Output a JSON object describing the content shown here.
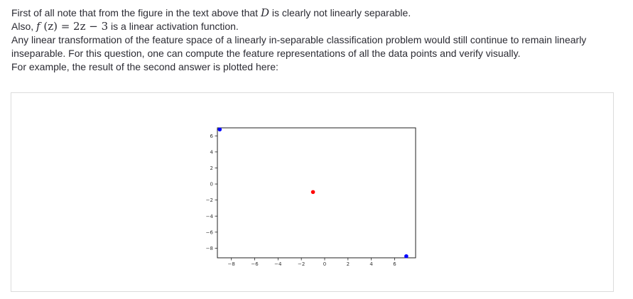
{
  "explanation": {
    "line1_pre": "First of all note that from the figure in the text above that ",
    "line1_var": "D",
    "line1_post": " is clearly not linearly separable.",
    "line2_pre": "Also, ",
    "line2_math_f": "f",
    "line2_math_rest": " (z) = 2z − 3",
    "line2_post": " is a linear activation function.",
    "line3": "Any linear transformation of the feature space of a linearly in-separable classification problem would still continue to remain linearly inseparable. For this question, one can compute the feature representations of all the data points and verify visually.",
    "line4": "For example, the result of the second answer is plotted here:"
  },
  "chart_data": {
    "type": "scatter",
    "title": "",
    "xlabel": "",
    "ylabel": "",
    "xlim": [
      -9.2,
      7.8
    ],
    "ylim": [
      -9.2,
      7.0
    ],
    "xticks": [
      -8,
      -6,
      -4,
      -2,
      0,
      2,
      4,
      6
    ],
    "yticks": [
      6,
      4,
      2,
      0,
      -2,
      -4,
      -6,
      -8
    ],
    "xtick_labels": [
      "−8",
      "−6",
      "−4",
      "−2",
      "0",
      "2",
      "4",
      "6"
    ],
    "ytick_labels": [
      "6",
      "4",
      "2",
      "0",
      "−2",
      "−4",
      "−6",
      "−8"
    ],
    "grid": false,
    "points": [
      {
        "x": -9.0,
        "y": 6.8,
        "color": "#0000ff"
      },
      {
        "x": -1.0,
        "y": -1.0,
        "color": "#ff0000"
      },
      {
        "x": 7.0,
        "y": -9.0,
        "color": "#0000ff"
      }
    ]
  }
}
